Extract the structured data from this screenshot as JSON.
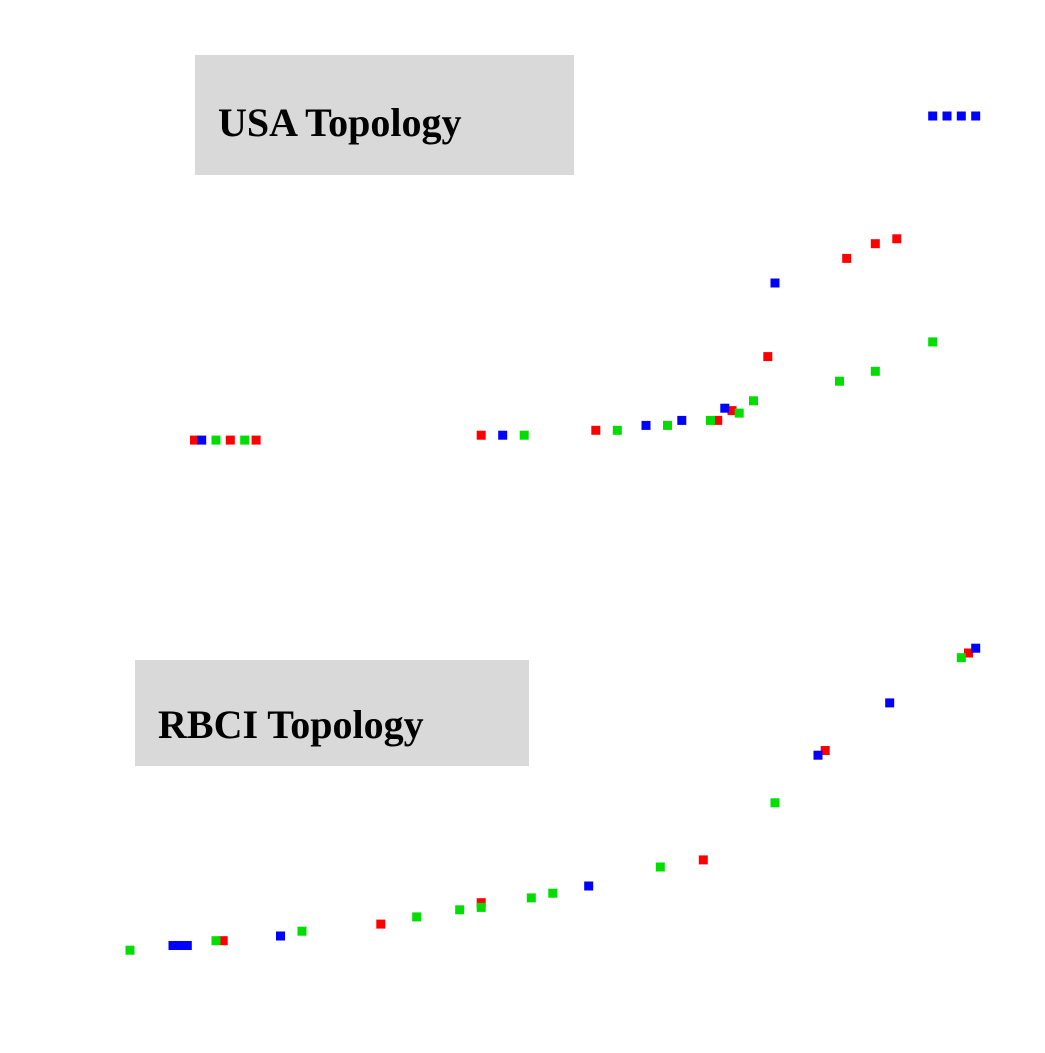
{
  "chart_data": [
    {
      "type": "scatter",
      "panel_label": "USA Topology",
      "title": "",
      "xlabel": "",
      "ylabel": "",
      "xlim": [
        0,
        6
      ],
      "ylim": [
        0,
        7.8
      ],
      "grid": false,
      "legend": "none",
      "series": [
        {
          "color": "#ff0000",
          "points": [
            [
              0.45,
              0.1
            ],
            [
              0.7,
              0.1
            ],
            [
              0.88,
              0.1
            ],
            [
              2.45,
              0.2
            ],
            [
              3.25,
              0.3
            ],
            [
              4.1,
              0.5
            ],
            [
              4.2,
              0.7
            ],
            [
              4.45,
              1.8
            ],
            [
              5.0,
              3.8
            ],
            [
              5.2,
              4.1
            ],
            [
              5.35,
              4.2
            ]
          ]
        },
        {
          "color": "#0000ff",
          "points": [
            [
              0.5,
              0.1
            ],
            [
              2.6,
              0.2
            ],
            [
              3.6,
              0.4
            ],
            [
              3.85,
              0.5
            ],
            [
              4.15,
              0.75
            ],
            [
              4.5,
              3.3
            ],
            [
              5.6,
              6.7
            ],
            [
              5.7,
              6.7
            ],
            [
              5.8,
              6.7
            ],
            [
              5.9,
              6.7
            ]
          ]
        },
        {
          "color": "#00dd00",
          "points": [
            [
              0.6,
              0.1
            ],
            [
              0.8,
              0.1
            ],
            [
              2.75,
              0.2
            ],
            [
              3.4,
              0.3
            ],
            [
              3.75,
              0.4
            ],
            [
              4.05,
              0.5
            ],
            [
              4.25,
              0.65
            ],
            [
              4.35,
              0.9
            ],
            [
              4.95,
              1.3
            ],
            [
              5.2,
              1.5
            ],
            [
              5.6,
              2.1
            ]
          ]
        }
      ]
    },
    {
      "type": "scatter",
      "panel_label": "RBCI Topology",
      "title": "",
      "xlabel": "",
      "ylabel": "",
      "xlim": [
        0,
        6
      ],
      "ylim": [
        0,
        7.8
      ],
      "grid": false,
      "legend": "none",
      "series": [
        {
          "color": "#ff0000",
          "points": [
            [
              0.65,
              0.3
            ],
            [
              1.75,
              0.65
            ],
            [
              2.45,
              1.1
            ],
            [
              4.0,
              2.0
            ],
            [
              4.85,
              4.3
            ],
            [
              5.85,
              6.35
            ]
          ]
        },
        {
          "color": "#0000ff",
          "points": [
            [
              0.3,
              0.2
            ],
            [
              0.35,
              0.2
            ],
            [
              0.4,
              0.2
            ],
            [
              1.05,
              0.4
            ],
            [
              3.2,
              1.45
            ],
            [
              4.8,
              4.2
            ],
            [
              5.3,
              5.3
            ],
            [
              5.9,
              6.45
            ]
          ]
        },
        {
          "color": "#00dd00",
          "points": [
            [
              0.0,
              0.1
            ],
            [
              0.6,
              0.3
            ],
            [
              1.2,
              0.5
            ],
            [
              2.0,
              0.8
            ],
            [
              2.3,
              0.95
            ],
            [
              2.45,
              1.0
            ],
            [
              2.8,
              1.2
            ],
            [
              2.95,
              1.3
            ],
            [
              3.7,
              1.85
            ],
            [
              4.5,
              3.2
            ],
            [
              5.8,
              6.25
            ]
          ]
        }
      ]
    }
  ]
}
